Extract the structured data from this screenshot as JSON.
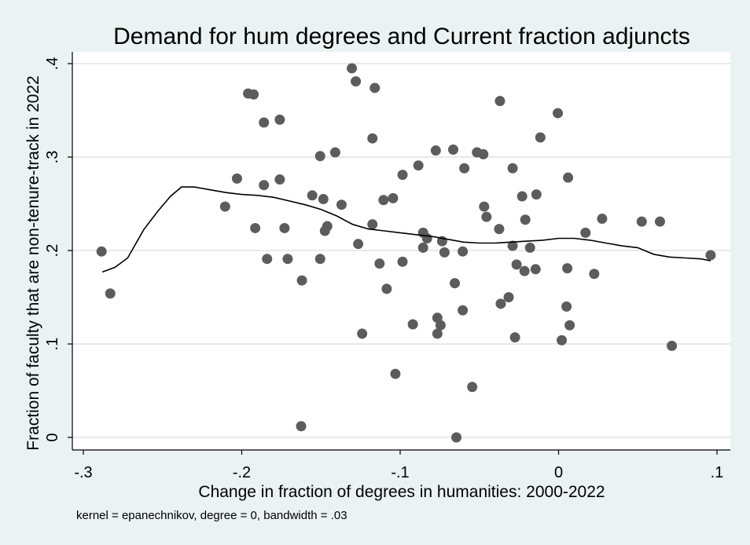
{
  "chart_data": {
    "type": "scatter",
    "title": "Demand for hum degrees and Current fraction adjuncts",
    "xlabel": "Change in fraction of degrees in humanities: 2000-2022",
    "ylabel": "Fraction of faculty that are non-tenure-track in 2022",
    "note": "kernel = epanechnikov, degree = 0, bandwidth = .03",
    "xlim": [
      -0.3,
      0.1
    ],
    "ylim": [
      0,
      0.4
    ],
    "xticks": [
      {
        "v": -0.3,
        "label": "-.3"
      },
      {
        "v": -0.2,
        "label": "-.2"
      },
      {
        "v": -0.1,
        "label": "-.1"
      },
      {
        "v": 0,
        "label": "0"
      },
      {
        "v": 0.1,
        "label": ".1"
      }
    ],
    "yticks": [
      {
        "v": 0,
        "label": "0"
      },
      {
        "v": 0.1,
        "label": ".1"
      },
      {
        "v": 0.2,
        "label": ".2"
      },
      {
        "v": 0.3,
        "label": ".3"
      },
      {
        "v": 0.4,
        "label": ".4"
      }
    ],
    "grid": true,
    "colors": {
      "background": "#eaf2f3",
      "plot": "#ffffff",
      "marker": "#5c5c5c",
      "fit_line": "#000000",
      "grid": "#e2e2e2"
    },
    "points": [
      [
        -0.2885,
        0.199
      ],
      [
        -0.283,
        0.154
      ],
      [
        -0.2105,
        0.247
      ],
      [
        -0.203,
        0.277
      ],
      [
        -0.196,
        0.368
      ],
      [
        -0.1925,
        0.367
      ],
      [
        -0.1915,
        0.224
      ],
      [
        -0.186,
        0.337
      ],
      [
        -0.186,
        0.27
      ],
      [
        -0.184,
        0.191
      ],
      [
        -0.176,
        0.34
      ],
      [
        -0.176,
        0.276
      ],
      [
        -0.173,
        0.224
      ],
      [
        -0.171,
        0.191
      ],
      [
        -0.162,
        0.168
      ],
      [
        -0.1625,
        0.012
      ],
      [
        -0.1555,
        0.259
      ],
      [
        -0.1505,
        0.301
      ],
      [
        -0.1505,
        0.191
      ],
      [
        -0.1485,
        0.255
      ],
      [
        -0.1475,
        0.221
      ],
      [
        -0.146,
        0.226
      ],
      [
        -0.141,
        0.305
      ],
      [
        -0.137,
        0.249
      ],
      [
        -0.1305,
        0.395
      ],
      [
        -0.128,
        0.381
      ],
      [
        -0.1265,
        0.207
      ],
      [
        -0.124,
        0.111
      ],
      [
        -0.1175,
        0.32
      ],
      [
        -0.1175,
        0.228
      ],
      [
        -0.116,
        0.374
      ],
      [
        -0.113,
        0.186
      ],
      [
        -0.1105,
        0.254
      ],
      [
        -0.1085,
        0.159
      ],
      [
        -0.1045,
        0.256
      ],
      [
        -0.103,
        0.068
      ],
      [
        -0.0985,
        0.281
      ],
      [
        -0.0985,
        0.188
      ],
      [
        -0.092,
        0.121
      ],
      [
        -0.0885,
        0.291
      ],
      [
        -0.0855,
        0.219
      ],
      [
        -0.0855,
        0.203
      ],
      [
        -0.083,
        0.213
      ],
      [
        -0.0775,
        0.307
      ],
      [
        -0.0765,
        0.128
      ],
      [
        -0.0765,
        0.111
      ],
      [
        -0.0745,
        0.12
      ],
      [
        -0.0735,
        0.21
      ],
      [
        -0.072,
        0.198
      ],
      [
        -0.0665,
        0.308
      ],
      [
        -0.0655,
        0.165
      ],
      [
        -0.0645,
        0.0
      ],
      [
        -0.0605,
        0.136
      ],
      [
        -0.0605,
        0.199
      ],
      [
        -0.0595,
        0.288
      ],
      [
        -0.0545,
        0.054
      ],
      [
        -0.0515,
        0.305
      ],
      [
        -0.0475,
        0.303
      ],
      [
        -0.047,
        0.247
      ],
      [
        -0.0455,
        0.236
      ],
      [
        -0.0375,
        0.223
      ],
      [
        -0.037,
        0.36
      ],
      [
        -0.0365,
        0.143
      ],
      [
        -0.0315,
        0.15
      ],
      [
        -0.029,
        0.288
      ],
      [
        -0.029,
        0.205
      ],
      [
        -0.0275,
        0.107
      ],
      [
        -0.0265,
        0.185
      ],
      [
        -0.023,
        0.258
      ],
      [
        -0.0215,
        0.178
      ],
      [
        -0.021,
        0.233
      ],
      [
        -0.018,
        0.203
      ],
      [
        -0.0145,
        0.18
      ],
      [
        -0.014,
        0.26
      ],
      [
        -0.0115,
        0.321
      ],
      [
        -0.0005,
        0.347
      ],
      [
        0.002,
        0.104
      ],
      [
        0.005,
        0.14
      ],
      [
        0.0055,
        0.181
      ],
      [
        0.006,
        0.278
      ],
      [
        0.007,
        0.12
      ],
      [
        0.017,
        0.219
      ],
      [
        0.0225,
        0.175
      ],
      [
        0.0275,
        0.234
      ],
      [
        0.0525,
        0.231
      ],
      [
        0.064,
        0.231
      ],
      [
        0.0715,
        0.098
      ],
      [
        0.096,
        0.195
      ]
    ],
    "fit_line": [
      [
        -0.288,
        0.177
      ],
      [
        -0.28,
        0.182
      ],
      [
        -0.272,
        0.192
      ],
      [
        -0.262,
        0.222
      ],
      [
        -0.253,
        0.242
      ],
      [
        -0.245,
        0.258
      ],
      [
        -0.238,
        0.268
      ],
      [
        -0.23,
        0.268
      ],
      [
        -0.22,
        0.265
      ],
      [
        -0.21,
        0.262
      ],
      [
        -0.2,
        0.26
      ],
      [
        -0.19,
        0.259
      ],
      [
        -0.18,
        0.257
      ],
      [
        -0.17,
        0.253
      ],
      [
        -0.16,
        0.249
      ],
      [
        -0.15,
        0.244
      ],
      [
        -0.14,
        0.237
      ],
      [
        -0.13,
        0.228
      ],
      [
        -0.12,
        0.223
      ],
      [
        -0.11,
        0.221
      ],
      [
        -0.1,
        0.219
      ],
      [
        -0.09,
        0.217
      ],
      [
        -0.08,
        0.215
      ],
      [
        -0.07,
        0.212
      ],
      [
        -0.06,
        0.209
      ],
      [
        -0.05,
        0.208
      ],
      [
        -0.04,
        0.208
      ],
      [
        -0.03,
        0.209
      ],
      [
        -0.02,
        0.21
      ],
      [
        -0.01,
        0.211
      ],
      [
        0.0,
        0.213
      ],
      [
        0.01,
        0.213
      ],
      [
        0.02,
        0.211
      ],
      [
        0.03,
        0.208
      ],
      [
        0.04,
        0.205
      ],
      [
        0.05,
        0.203
      ],
      [
        0.06,
        0.196
      ],
      [
        0.07,
        0.193
      ],
      [
        0.08,
        0.192
      ],
      [
        0.09,
        0.191
      ],
      [
        0.096,
        0.189
      ]
    ]
  }
}
